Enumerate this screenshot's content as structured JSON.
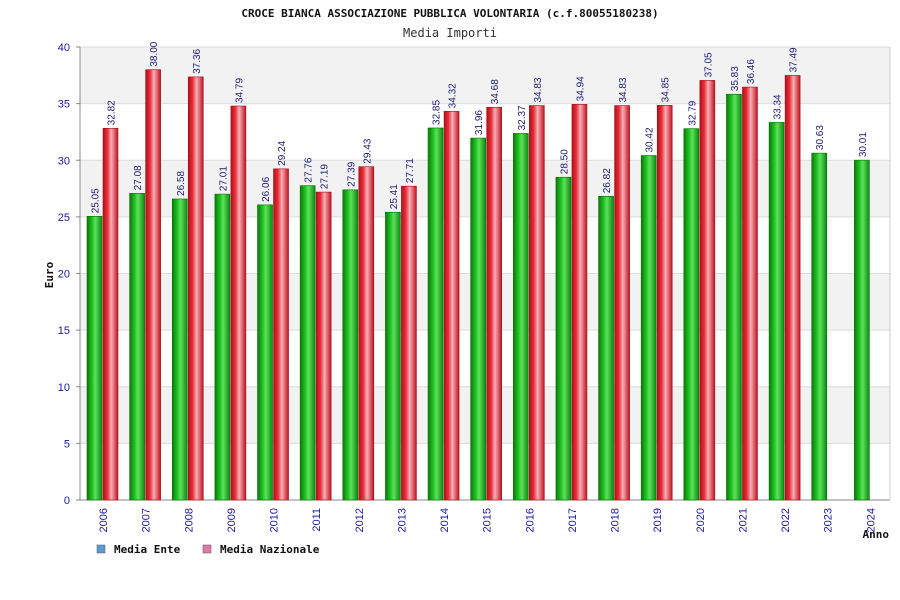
{
  "chart_data": {
    "type": "bar",
    "title": "CROCE BIANCA ASSOCIAZIONE PUBBLICA VOLONTARIA (c.f.80055180238)",
    "subtitle": "Media Importi",
    "ylabel": "Euro",
    "xlabel": "Anno",
    "ylim": [
      0,
      40
    ],
    "yticks": [
      "0",
      "5",
      "10",
      "15",
      "20",
      "25",
      "30",
      "35",
      "40"
    ],
    "categories": [
      "2006",
      "2007",
      "2008",
      "2009",
      "2010",
      "2011",
      "2012",
      "2013",
      "2014",
      "2015",
      "2016",
      "2017",
      "2018",
      "2019",
      "2020",
      "2021",
      "2022",
      "2023",
      "2024"
    ],
    "series": [
      {
        "name": "Media Ente",
        "color": "#1aa81a",
        "values": [
          25.05,
          27.08,
          26.58,
          27.01,
          26.06,
          27.76,
          27.39,
          25.41,
          32.85,
          31.96,
          32.37,
          28.5,
          26.82,
          30.42,
          32.79,
          35.83,
          33.34,
          30.63,
          30.01
        ],
        "labels": [
          "25.05",
          "27.08",
          "26.58",
          "27.01",
          "26.06",
          "27.76",
          "27.39",
          "25.41",
          "32.85",
          "31.96",
          "32.37",
          "28.50",
          "26.82",
          "30.42",
          "32.79",
          "35.83",
          "33.34",
          "30.63",
          "30.01"
        ]
      },
      {
        "name": "Media Nazionale",
        "color": "#e0202a",
        "values": [
          32.82,
          38.0,
          37.36,
          34.79,
          29.24,
          27.19,
          29.43,
          27.71,
          34.32,
          34.68,
          34.83,
          34.94,
          34.83,
          34.85,
          37.05,
          36.46,
          37.49,
          null,
          null
        ],
        "labels": [
          "32.82",
          "38.00",
          "37.36",
          "34.79",
          "29.24",
          "27.19",
          "29.43",
          "27.71",
          "34.32",
          "34.68",
          "34.83",
          "34.94",
          "34.83",
          "34.85",
          "37.05",
          "36.46",
          "37.49",
          "",
          ""
        ]
      }
    ],
    "legend": {
      "position": "bottom-left",
      "items": [
        {
          "label": "Media Ente",
          "color": "#5b9bd5"
        },
        {
          "label": "Media Nazionale",
          "color": "#e07aa8"
        }
      ]
    },
    "grid": true
  }
}
